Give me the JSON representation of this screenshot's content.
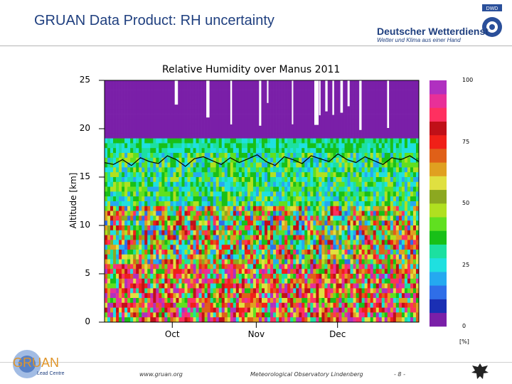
{
  "slide": {
    "title": "GRUAN Data Product: RH uncertainty",
    "footer_url": "www.gruan.org",
    "footer_org": "Meteorological Observatory Lindenberg",
    "page_number": "- 8 -"
  },
  "logos": {
    "dwd_name": "Deutscher Wetterdienst",
    "dwd_tagline": "Wetter und Klima aus einer Hand",
    "dwd_mark": "DWD",
    "dwd_icon": "dwd-spiral-icon",
    "gruan_name": "GRUAN",
    "gruan_sub": "Lead Centre",
    "eagle_icon": "federal-eagle-icon"
  },
  "chart_data": {
    "type": "heatmap",
    "title": "Relative Humidity over Manus 2011",
    "ylabel": "Altitude [km]",
    "xlabel": "",
    "ylim": [
      0,
      25
    ],
    "yticks": [
      "0",
      "5",
      "10",
      "15",
      "20",
      "25"
    ],
    "x_range": [
      "2011-09-06",
      "2011-12-31"
    ],
    "xticks": [
      {
        "label": "Oct",
        "date": "2011-10-01"
      },
      {
        "label": "Nov",
        "date": "2011-11-01"
      },
      {
        "label": "Dec",
        "date": "2011-12-01"
      }
    ],
    "colorbar": {
      "unit": "[%]",
      "range": [
        0,
        100
      ],
      "ticks": [
        "0",
        "25",
        "50",
        "75",
        "100"
      ],
      "colors": [
        "#7a1fa8",
        "#1a2fb4",
        "#2f6ee8",
        "#25a9f0",
        "#1fe0e0",
        "#1ce0a0",
        "#18c018",
        "#60e020",
        "#b0e020",
        "#8ca820",
        "#e0e040",
        "#e0a020",
        "#e06018",
        "#f02018",
        "#c01018",
        "#ff3060",
        "#e83098",
        "#b030c0"
      ]
    },
    "tropopause_line": {
      "name": "tropopause",
      "color": "#000000",
      "altitude_km_approx": [
        16.5,
        16.3,
        16.8,
        16.2,
        17.0,
        16.6,
        16.4,
        17.2,
        16.8,
        16.1,
        16.9,
        17.1,
        16.7,
        16.3,
        17.0,
        16.5,
        16.9,
        17.3,
        16.6,
        16.2,
        17.1,
        16.8,
        16.4,
        17.2,
        16.9,
        16.6,
        17.4,
        16.8,
        16.5,
        17.1,
        16.7,
        16.3,
        17.0,
        16.8,
        17.2,
        16.6
      ]
    }
  }
}
